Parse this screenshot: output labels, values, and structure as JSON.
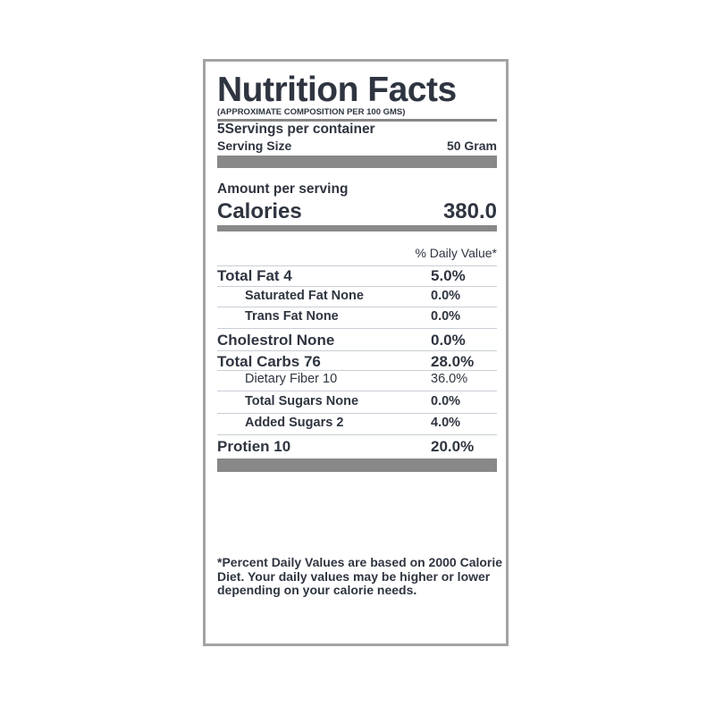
{
  "label": {
    "title": "Nutrition Facts",
    "subtitle": "(APPROXIMATE COMPOSITION PER 100 GMS)",
    "servings_per_container": "5Servings per container",
    "serving_size_label": "Serving Size",
    "serving_size_value": "50 Gram",
    "amount_per_serving": "Amount per serving",
    "calories_label": "Calories",
    "calories_value": "380.0",
    "daily_value_header": "% Daily Value*",
    "nutrients": [
      {
        "label": "Total Fat 4",
        "pct": "5.0%"
      },
      {
        "label": "Saturated Fat None",
        "pct": "0.0%"
      },
      {
        "label": "Trans Fat None",
        "pct": "0.0%"
      },
      {
        "label": "Cholestrol None",
        "pct": "0.0%"
      },
      {
        "label": "Total Carbs 76",
        "pct": "28.0%"
      },
      {
        "label": "Dietary Fiber 10",
        "pct": "36.0%"
      },
      {
        "label": "Total Sugars None",
        "pct": "0.0%"
      },
      {
        "label": "Added Sugars 2",
        "pct": "4.0%"
      },
      {
        "label": "Protien 10",
        "pct": "20.0%"
      }
    ],
    "footnote": "*Percent Daily Values are based on 2000 Calorie Diet. Your daily values may be higher or lower depending on your calorie needs."
  }
}
